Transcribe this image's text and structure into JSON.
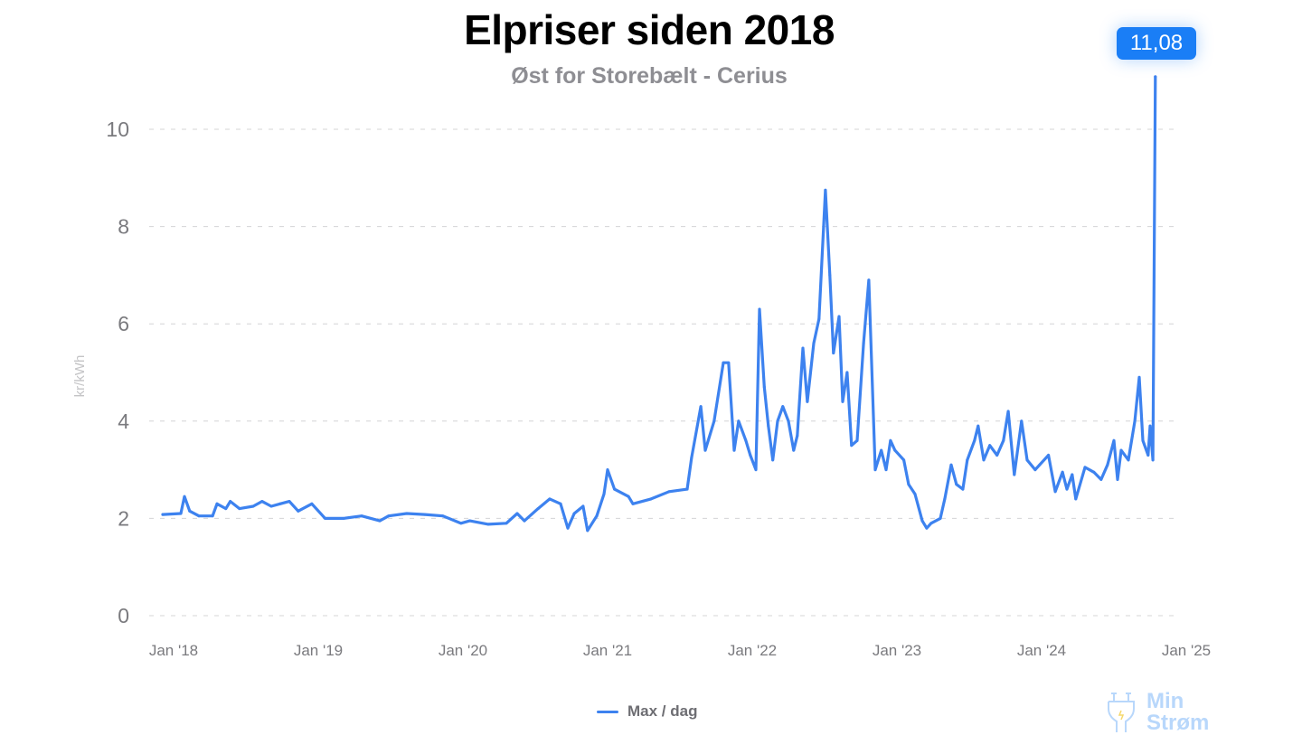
{
  "chart_data": {
    "type": "line",
    "title": "Elpriser siden 2018",
    "subtitle": "Øst for Storebælt - Cerius",
    "xlabel": "",
    "ylabel": "kr/kWh",
    "ylim": [
      0,
      10.5
    ],
    "yticks": [
      "0",
      "2",
      "4",
      "6",
      "8",
      "10"
    ],
    "xticks": [
      "Jan '18",
      "Jan '19",
      "Jan '20",
      "Jan '21",
      "Jan '22",
      "Jan '23",
      "Jan '24",
      "Jan '25"
    ],
    "grid": "horizontal dashed",
    "legend_position": "bottom",
    "line_color": "#3d82ef",
    "annotation": {
      "label": "11,08",
      "color": "#1a7ef6"
    },
    "series": [
      {
        "name": "Max / dag",
        "points": [
          [
            "2018-01-01",
            2.08
          ],
          [
            "2018-02-16",
            2.1
          ],
          [
            "2018-02-25",
            2.45
          ],
          [
            "2018-03-08",
            2.15
          ],
          [
            "2018-04-01",
            2.05
          ],
          [
            "2018-05-05",
            2.05
          ],
          [
            "2018-05-16",
            2.3
          ],
          [
            "2018-06-08",
            2.2
          ],
          [
            "2018-06-19",
            2.35
          ],
          [
            "2018-07-12",
            2.2
          ],
          [
            "2018-08-16",
            2.25
          ],
          [
            "2018-09-08",
            2.35
          ],
          [
            "2018-10-01",
            2.25
          ],
          [
            "2018-10-23",
            2.3
          ],
          [
            "2018-11-16",
            2.35
          ],
          [
            "2018-12-08",
            2.15
          ],
          [
            "2019-01-12",
            2.3
          ],
          [
            "2019-02-15",
            2.0
          ],
          [
            "2019-04-01",
            2.0
          ],
          [
            "2019-05-16",
            2.05
          ],
          [
            "2019-07-01",
            1.95
          ],
          [
            "2019-07-23",
            2.05
          ],
          [
            "2019-09-08",
            2.1
          ],
          [
            "2019-10-23",
            2.08
          ],
          [
            "2019-12-08",
            2.05
          ],
          [
            "2020-01-23",
            1.9
          ],
          [
            "2020-02-15",
            1.95
          ],
          [
            "2020-04-01",
            1.88
          ],
          [
            "2020-05-16",
            1.9
          ],
          [
            "2020-06-13",
            2.1
          ],
          [
            "2020-07-01",
            1.95
          ],
          [
            "2020-08-05",
            2.2
          ],
          [
            "2020-09-04",
            2.4
          ],
          [
            "2020-10-01",
            2.3
          ],
          [
            "2020-10-19",
            1.8
          ],
          [
            "2020-11-05",
            2.1
          ],
          [
            "2020-11-27",
            2.25
          ],
          [
            "2020-12-08",
            1.75
          ],
          [
            "2021-01-01",
            2.05
          ],
          [
            "2021-01-19",
            2.5
          ],
          [
            "2021-01-28",
            3.0
          ],
          [
            "2021-02-15",
            2.6
          ],
          [
            "2021-03-20",
            2.45
          ],
          [
            "2021-04-01",
            2.3
          ],
          [
            "2021-05-16",
            2.4
          ],
          [
            "2021-07-01",
            2.55
          ],
          [
            "2021-08-16",
            2.6
          ],
          [
            "2021-08-27",
            3.25
          ],
          [
            "2021-09-20",
            4.3
          ],
          [
            "2021-10-01",
            3.4
          ],
          [
            "2021-10-23",
            4.0
          ],
          [
            "2021-11-16",
            5.2
          ],
          [
            "2021-11-29",
            5.2
          ],
          [
            "2021-12-13",
            3.4
          ],
          [
            "2021-12-24",
            4.0
          ],
          [
            "2022-01-12",
            3.6
          ],
          [
            "2022-01-23",
            3.3
          ],
          [
            "2022-02-07",
            3.0
          ],
          [
            "2022-02-16",
            6.3
          ],
          [
            "2022-02-28",
            4.7
          ],
          [
            "2022-03-08",
            3.9
          ],
          [
            "2022-03-19",
            3.2
          ],
          [
            "2022-04-01",
            4.0
          ],
          [
            "2022-04-14",
            4.3
          ],
          [
            "2022-04-28",
            4.0
          ],
          [
            "2022-05-11",
            3.4
          ],
          [
            "2022-05-20",
            3.7
          ],
          [
            "2022-06-04",
            5.5
          ],
          [
            "2022-06-15",
            4.4
          ],
          [
            "2022-07-01",
            5.6
          ],
          [
            "2022-07-14",
            6.1
          ],
          [
            "2022-07-30",
            8.75
          ],
          [
            "2022-08-11",
            7.0
          ],
          [
            "2022-08-20",
            5.4
          ],
          [
            "2022-09-04",
            6.15
          ],
          [
            "2022-09-13",
            4.4
          ],
          [
            "2022-09-24",
            5.0
          ],
          [
            "2022-10-05",
            3.5
          ],
          [
            "2022-10-19",
            3.6
          ],
          [
            "2022-11-05",
            5.6
          ],
          [
            "2022-11-18",
            6.9
          ],
          [
            "2022-12-04",
            3.0
          ],
          [
            "2022-12-19",
            3.4
          ],
          [
            "2023-01-01",
            3.0
          ],
          [
            "2023-01-12",
            3.6
          ],
          [
            "2023-01-23",
            3.4
          ],
          [
            "2023-02-15",
            3.2
          ],
          [
            "2023-02-27",
            2.7
          ],
          [
            "2023-03-13",
            2.5
          ],
          [
            "2023-04-01",
            1.95
          ],
          [
            "2023-04-12",
            1.8
          ],
          [
            "2023-04-23",
            1.9
          ],
          [
            "2023-05-16",
            2.0
          ],
          [
            "2023-05-27",
            2.4
          ],
          [
            "2023-06-13",
            3.1
          ],
          [
            "2023-06-26",
            2.7
          ],
          [
            "2023-07-12",
            2.6
          ],
          [
            "2023-07-23",
            3.2
          ],
          [
            "2023-08-11",
            3.6
          ],
          [
            "2023-08-20",
            3.9
          ],
          [
            "2023-09-04",
            3.2
          ],
          [
            "2023-09-19",
            3.5
          ],
          [
            "2023-10-07",
            3.3
          ],
          [
            "2023-10-23",
            3.6
          ],
          [
            "2023-11-05",
            4.2
          ],
          [
            "2023-11-20",
            2.9
          ],
          [
            "2023-12-08",
            4.0
          ],
          [
            "2023-12-22",
            3.2
          ],
          [
            "2024-01-12",
            3.0
          ],
          [
            "2024-01-23",
            3.1
          ],
          [
            "2024-02-15",
            3.3
          ],
          [
            "2024-03-02",
            2.55
          ],
          [
            "2024-03-20",
            2.95
          ],
          [
            "2024-04-01",
            2.6
          ],
          [
            "2024-04-14",
            2.9
          ],
          [
            "2024-04-23",
            2.4
          ],
          [
            "2024-05-16",
            3.05
          ],
          [
            "2024-06-08",
            2.95
          ],
          [
            "2024-06-26",
            2.8
          ],
          [
            "2024-07-12",
            3.1
          ],
          [
            "2024-07-28",
            3.6
          ],
          [
            "2024-08-07",
            2.8
          ],
          [
            "2024-08-16",
            3.4
          ],
          [
            "2024-09-04",
            3.2
          ],
          [
            "2024-09-20",
            4.0
          ],
          [
            "2024-10-01",
            4.9
          ],
          [
            "2024-10-10",
            3.6
          ],
          [
            "2024-10-23",
            3.3
          ],
          [
            "2024-10-28",
            3.9
          ],
          [
            "2024-11-05",
            3.2
          ],
          [
            "2024-11-11",
            11.08
          ]
        ]
      }
    ]
  },
  "logo": {
    "text_line1": "Min",
    "text_line2": "Strøm",
    "icon": "plug-icon"
  }
}
